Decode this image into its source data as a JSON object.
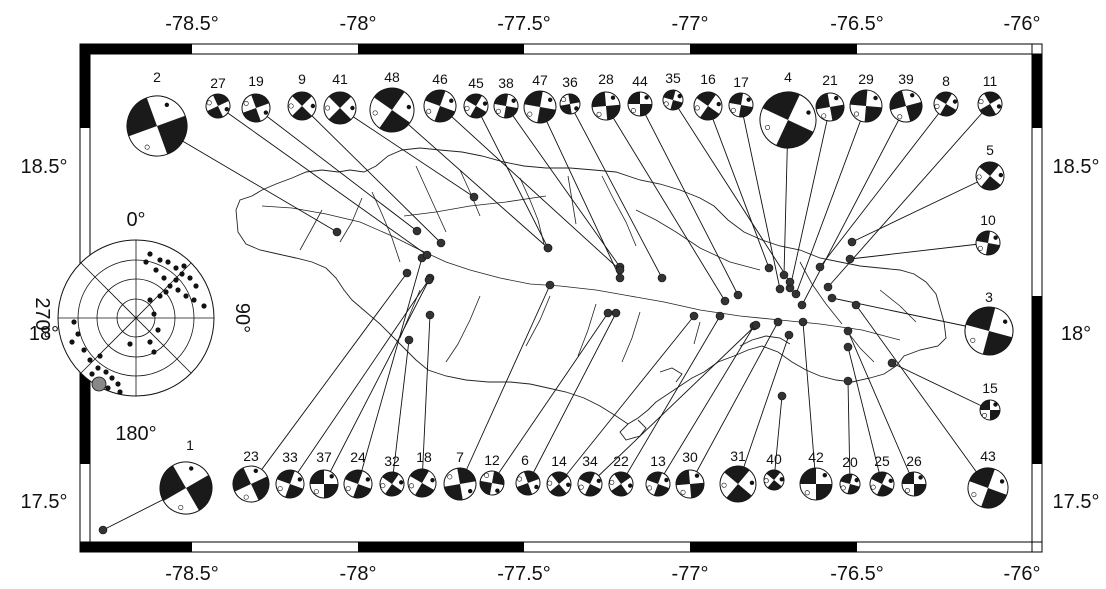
{
  "map": {
    "lon_ticks": [
      {
        "label": "-78.5°"
      },
      {
        "label": "-78°"
      },
      {
        "label": "-77.5°"
      },
      {
        "label": "-77°"
      },
      {
        "label": "-76.5°"
      },
      {
        "label": "-76°"
      }
    ],
    "lat_ticks": [
      {
        "label": "18.5°"
      },
      {
        "label": "18°"
      },
      {
        "label": "17.5°"
      }
    ],
    "stereonet": {
      "north_label": "0°",
      "east_label": "90°",
      "south_label": "180°",
      "west_label": "270°"
    },
    "colors": {
      "mechanism_fill": "#1a1a1a",
      "epicenter": "#333333",
      "frame_dark": "#000000",
      "stereonet_highlight": "#888888"
    },
    "events": [
      {
        "id": "1"
      },
      {
        "id": "2"
      },
      {
        "id": "3"
      },
      {
        "id": "4"
      },
      {
        "id": "5"
      },
      {
        "id": "6"
      },
      {
        "id": "7"
      },
      {
        "id": "8"
      },
      {
        "id": "9"
      },
      {
        "id": "10"
      },
      {
        "id": "11"
      },
      {
        "id": "12"
      },
      {
        "id": "13"
      },
      {
        "id": "14"
      },
      {
        "id": "15"
      },
      {
        "id": "16"
      },
      {
        "id": "17"
      },
      {
        "id": "18"
      },
      {
        "id": "19"
      },
      {
        "id": "20"
      },
      {
        "id": "21"
      },
      {
        "id": "22"
      },
      {
        "id": "23"
      },
      {
        "id": "24"
      },
      {
        "id": "25"
      },
      {
        "id": "26"
      },
      {
        "id": "27"
      },
      {
        "id": "28"
      },
      {
        "id": "29"
      },
      {
        "id": "30"
      },
      {
        "id": "31"
      },
      {
        "id": "32"
      },
      {
        "id": "33"
      },
      {
        "id": "34"
      },
      {
        "id": "35"
      },
      {
        "id": "36"
      },
      {
        "id": "37"
      },
      {
        "id": "38"
      },
      {
        "id": "39"
      },
      {
        "id": "40"
      },
      {
        "id": "41"
      },
      {
        "id": "42"
      },
      {
        "id": "43"
      },
      {
        "id": "44"
      },
      {
        "id": "45"
      },
      {
        "id": "46"
      },
      {
        "id": "47"
      },
      {
        "id": "48"
      }
    ]
  }
}
